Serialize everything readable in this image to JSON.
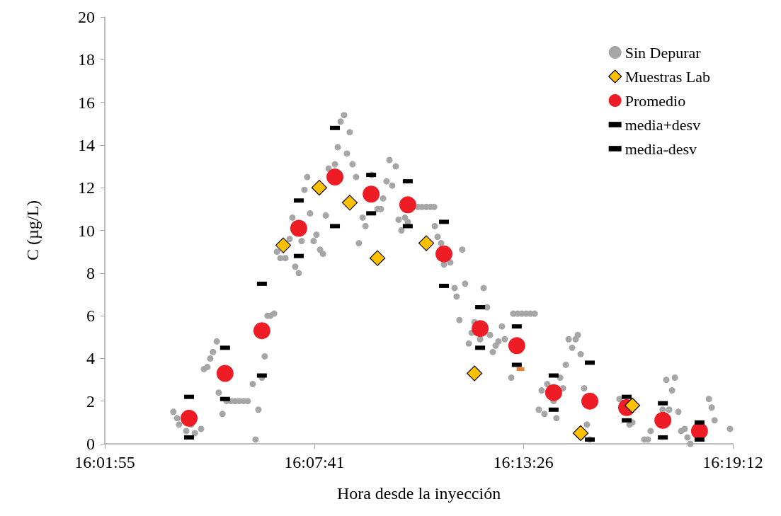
{
  "chart_data": {
    "type": "scatter",
    "xlabel": "Hora desde la inyección",
    "ylabel": "C (µg/L)",
    "xlim": [
      16.031944,
      16.32
    ],
    "xticks": [
      {
        "value": 16.031944,
        "label": "16:01:55"
      },
      {
        "value": 16.128056,
        "label": "16:07:41"
      },
      {
        "value": 16.223889,
        "label": "16:13:26"
      },
      {
        "value": 16.32,
        "label": "16:19:12"
      }
    ],
    "ylim": [
      0,
      20
    ],
    "yticks": [
      0,
      2,
      4,
      6,
      8,
      10,
      12,
      14,
      16,
      18,
      20
    ],
    "grid": false,
    "legend": "top right",
    "series": [
      {
        "name": "Sin Depurar",
        "color": "#a6a6a6",
        "marker": "circle",
        "x": [
          16.0634,
          16.0651,
          16.066,
          16.0693,
          16.0716,
          16.0732,
          16.0761,
          16.0774,
          16.079,
          16.0803,
          16.0816,
          16.0833,
          16.0842,
          16.0859,
          16.0878,
          16.0898,
          16.0917,
          16.0936,
          16.0956,
          16.0975,
          16.0998,
          16.1011,
          16.1024,
          16.104,
          16.1053,
          16.1066,
          16.1079,
          16.1096,
          16.1109,
          16.1125,
          16.1148,
          16.1167,
          16.118,
          16.1193,
          16.1209,
          16.1222,
          16.1235,
          16.1248,
          16.1261,
          16.1277,
          16.129,
          16.1307,
          16.132,
          16.1333,
          16.1346,
          16.1375,
          16.1388,
          16.1401,
          16.1417,
          16.143,
          16.1443,
          16.1456,
          16.1472,
          16.1485,
          16.1502,
          16.1515,
          16.1544,
          16.157,
          16.1586,
          16.1596,
          16.1612,
          16.1625,
          16.1638,
          16.1654,
          16.1667,
          16.168,
          16.1696,
          16.1709,
          16.1755,
          16.1774,
          16.1794,
          16.1813,
          16.183,
          16.1833,
          16.1846,
          16.1862,
          16.1875,
          16.1904,
          16.1924,
          16.1933,
          16.1946,
          16.1959,
          16.1972,
          16.1989,
          16.2002,
          16.2015,
          16.2041,
          16.2057,
          16.2073,
          16.2086,
          16.2099,
          16.2112,
          16.2125,
          16.2141,
          16.2154,
          16.2184,
          16.2193,
          16.2213,
          16.2232,
          16.2252,
          16.2271,
          16.2291,
          16.231,
          16.2323,
          16.2336,
          16.2349,
          16.2378,
          16.2391,
          16.2408,
          16.2421,
          16.2434,
          16.2447,
          16.2463,
          16.2479,
          16.2489,
          16.2502,
          16.2518,
          16.2531,
          16.2544,
          16.268,
          16.2726,
          16.2739,
          16.2794,
          16.281,
          16.2823,
          16.2878,
          16.2895,
          16.2908,
          16.2921,
          16.2934,
          16.295,
          16.2963,
          16.2979,
          16.2992,
          16.3005,
          16.309,
          16.3103,
          16.3116,
          16.3187
        ],
        "values": [
          1.5,
          1.2,
          0.9,
          0.6,
          0.9,
          0.5,
          0.7,
          3.5,
          3.6,
          4.0,
          4.3,
          4.8,
          2.4,
          1.4,
          2.0,
          2.0,
          2.0,
          2.0,
          2.0,
          2.0,
          2.8,
          0.2,
          1.6,
          3.1,
          4.1,
          6.0,
          6.0,
          6.1,
          9.0,
          8.7,
          8.7,
          9.6,
          10.6,
          8.3,
          8.0,
          9.5,
          11.9,
          12.5,
          10.8,
          9.5,
          9.8,
          9.1,
          8.9,
          10.7,
          12.9,
          13.1,
          13.9,
          15.1,
          15.4,
          13.6,
          14.6,
          13.1,
          12.5,
          9.4,
          10.6,
          10.2,
          12.6,
          11.0,
          11.0,
          11.5,
          12.3,
          13.3,
          12.1,
          13.0,
          10.5,
          10.0,
          10.6,
          10.4,
          11.1,
          11.1,
          11.1,
          11.1,
          11.1,
          10.2,
          9.7,
          9.4,
          8.4,
          8.5,
          7.3,
          6.9,
          5.8,
          9.1,
          7.5,
          4.7,
          5.2,
          5.7,
          4.9,
          7.3,
          6.4,
          5.1,
          4.3,
          4.6,
          4.8,
          5.5,
          4.9,
          3.1,
          6.1,
          6.1,
          6.1,
          6.1,
          6.1,
          6.1,
          1.6,
          2.5,
          1.4,
          2.8,
          2.0,
          1.2,
          3.1,
          2.6,
          3.7,
          4.9,
          4.5,
          4.9,
          5.1,
          4.2,
          2.6,
          0.9,
          0.2,
          2.1,
          0.9,
          1.0,
          0.2,
          0.2,
          0.6,
          1.6,
          3.0,
          1.6,
          2.5,
          3.1,
          1.5,
          0.6,
          0.7,
          0.3,
          0.0,
          2.1,
          1.7,
          1.1,
          0.7
        ]
      },
      {
        "name": "Muestras Lab",
        "color": "#ffc000",
        "marker": "diamond",
        "x": [
          16.1138,
          16.1303,
          16.1443,
          16.157,
          16.1794,
          16.2015,
          16.2502,
          16.2739
        ],
        "values": [
          9.3,
          12.0,
          11.3,
          8.7,
          9.4,
          3.3,
          0.5,
          1.8
        ]
      },
      {
        "name": "Promedio",
        "color": "#ee1c25",
        "marker": "circle",
        "x": [
          16.0706,
          16.0871,
          16.104,
          16.1209,
          16.1375,
          16.1541,
          16.1709,
          16.1875,
          16.2041,
          16.2209,
          16.2378,
          16.2544,
          16.2713,
          16.2879,
          16.3047
        ],
        "values": [
          1.2,
          3.3,
          5.3,
          10.1,
          12.5,
          11.7,
          11.2,
          8.9,
          5.4,
          4.6,
          2.4,
          2.0,
          1.7,
          1.1,
          0.6
        ]
      },
      {
        "name": "media+desv",
        "color": "#000000",
        "marker": "square",
        "x": [
          16.0706,
          16.0871,
          16.104,
          16.1209,
          16.1375,
          16.1541,
          16.1709,
          16.1875,
          16.2041,
          16.2209,
          16.2378,
          16.2544,
          16.2713,
          16.2879,
          16.3047
        ],
        "values": [
          2.2,
          4.5,
          7.5,
          11.4,
          14.8,
          12.6,
          12.3,
          10.4,
          6.4,
          5.5,
          3.2,
          3.8,
          2.2,
          1.9,
          1.0
        ]
      },
      {
        "name": "media-desv",
        "color": "#000000",
        "marker": "square",
        "x": [
          16.0706,
          16.0871,
          16.104,
          16.1209,
          16.1375,
          16.1541,
          16.1709,
          16.1875,
          16.2041,
          16.2209,
          16.2378,
          16.2544,
          16.2713,
          16.2879,
          16.3047
        ],
        "values": [
          0.3,
          2.1,
          3.2,
          8.8,
          10.2,
          10.8,
          10.2,
          7.4,
          4.5,
          3.7,
          1.6,
          0.2,
          1.1,
          0.3,
          0.2
        ]
      },
      {
        "color": "#ed7d31",
        "marker": "square",
        "x": [
          16.2226
        ],
        "values": [
          3.5
        ]
      }
    ]
  }
}
